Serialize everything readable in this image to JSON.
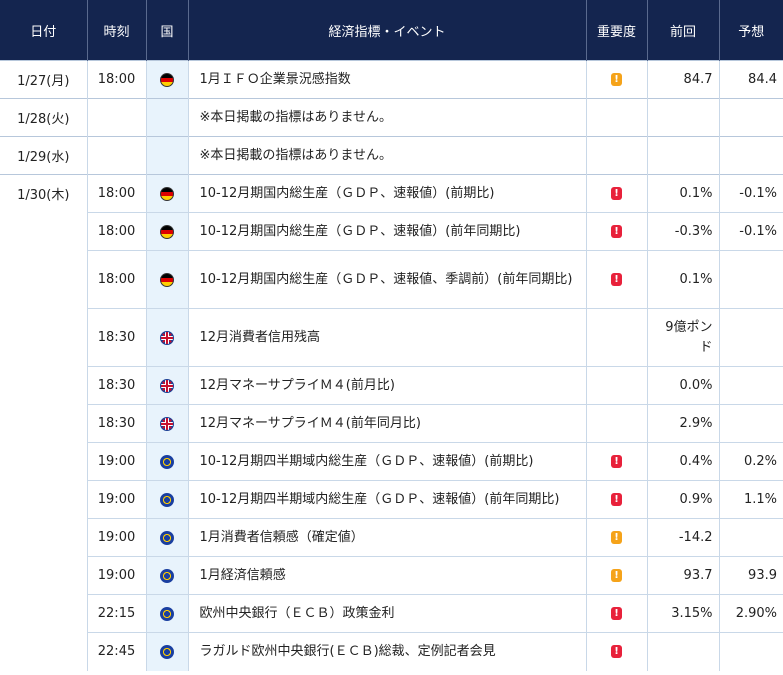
{
  "header": {
    "date": "日付",
    "time": "時刻",
    "country": "国",
    "event": "経済指標・イベント",
    "importance": "重要度",
    "previous": "前回",
    "forecast": "予想"
  },
  "importance_symbol": "!",
  "colors": {
    "header_bg": "#14254f",
    "flag_column_bg": "#e8f3fc",
    "importance_high": "#e8213b",
    "importance_medium": "#f5a31a"
  },
  "rows": [
    {
      "date": "1/27(月)",
      "time": "18:00",
      "flag": "germany-flag",
      "event": "1月ＩＦＯ企業景況感指数",
      "importance": "medium",
      "previous": "84.7",
      "forecast": "84.4",
      "height": 38
    },
    {
      "date": "1/28(火)",
      "time": "",
      "flag": "",
      "event": "※本日掲載の指標はありません。",
      "importance": "",
      "previous": "",
      "forecast": "",
      "height": 38
    },
    {
      "date": "1/29(水)",
      "time": "",
      "flag": "",
      "event": "※本日掲載の指標はありません。",
      "importance": "",
      "previous": "",
      "forecast": "",
      "height": 38
    },
    {
      "date": "1/30(木)",
      "time": "18:00",
      "flag": "germany-flag",
      "event": "10-12月期国内総生産（ＧＤＰ、速報値）(前期比)",
      "importance": "high",
      "previous": "0.1%",
      "forecast": "-0.1%",
      "height": 38
    },
    {
      "date": "",
      "time": "18:00",
      "flag": "germany-flag",
      "event": "10-12月期国内総生産（ＧＤＰ、速報値）(前年同期比)",
      "importance": "high",
      "previous": "-0.3%",
      "forecast": "-0.1%",
      "height": 38
    },
    {
      "date": "",
      "time": "18:00",
      "flag": "germany-flag",
      "event": "10-12月期国内総生産（ＧＤＰ、速報値、季調前）(前年同期比)",
      "importance": "high",
      "previous": "0.1%",
      "forecast": "",
      "height": 58
    },
    {
      "date": "",
      "time": "18:30",
      "flag": "uk-flag",
      "event": "12月消費者信用残高",
      "importance": "",
      "previous": "9億ポンド",
      "forecast": "",
      "height": 58
    },
    {
      "date": "",
      "time": "18:30",
      "flag": "uk-flag",
      "event": "12月マネーサプライＭ４(前月比)",
      "importance": "",
      "previous": "0.0%",
      "forecast": "",
      "height": 38
    },
    {
      "date": "",
      "time": "18:30",
      "flag": "uk-flag",
      "event": "12月マネーサプライＭ４(前年同月比)",
      "importance": "",
      "previous": "2.9%",
      "forecast": "",
      "height": 38
    },
    {
      "date": "",
      "time": "19:00",
      "flag": "eu-flag",
      "event": "10-12月期四半期域内総生産（ＧＤＰ、速報値）(前期比)",
      "importance": "high",
      "previous": "0.4%",
      "forecast": "0.2%",
      "height": 38
    },
    {
      "date": "",
      "time": "19:00",
      "flag": "eu-flag",
      "event": "10-12月期四半期域内総生産（ＧＤＰ、速報値）(前年同期比)",
      "importance": "high",
      "previous": "0.9%",
      "forecast": "1.1%",
      "height": 38
    },
    {
      "date": "",
      "time": "19:00",
      "flag": "eu-flag",
      "event": "1月消費者信頼感（確定値）",
      "importance": "medium",
      "previous": "-14.2",
      "forecast": "",
      "height": 38
    },
    {
      "date": "",
      "time": "19:00",
      "flag": "eu-flag",
      "event": "1月経済信頼感",
      "importance": "medium",
      "previous": "93.7",
      "forecast": "93.9",
      "height": 38
    },
    {
      "date": "",
      "time": "22:15",
      "flag": "eu-flag",
      "event": "欧州中央銀行（ＥＣＢ）政策金利",
      "importance": "high",
      "previous": "3.15%",
      "forecast": "2.90%",
      "height": 38
    },
    {
      "date": "",
      "time": "22:45",
      "flag": "eu-flag",
      "event": "ラガルド欧州中央銀行(ＥＣＢ)総裁、定例記者会見",
      "importance": "high",
      "previous": "",
      "forecast": "",
      "height": 38
    }
  ]
}
